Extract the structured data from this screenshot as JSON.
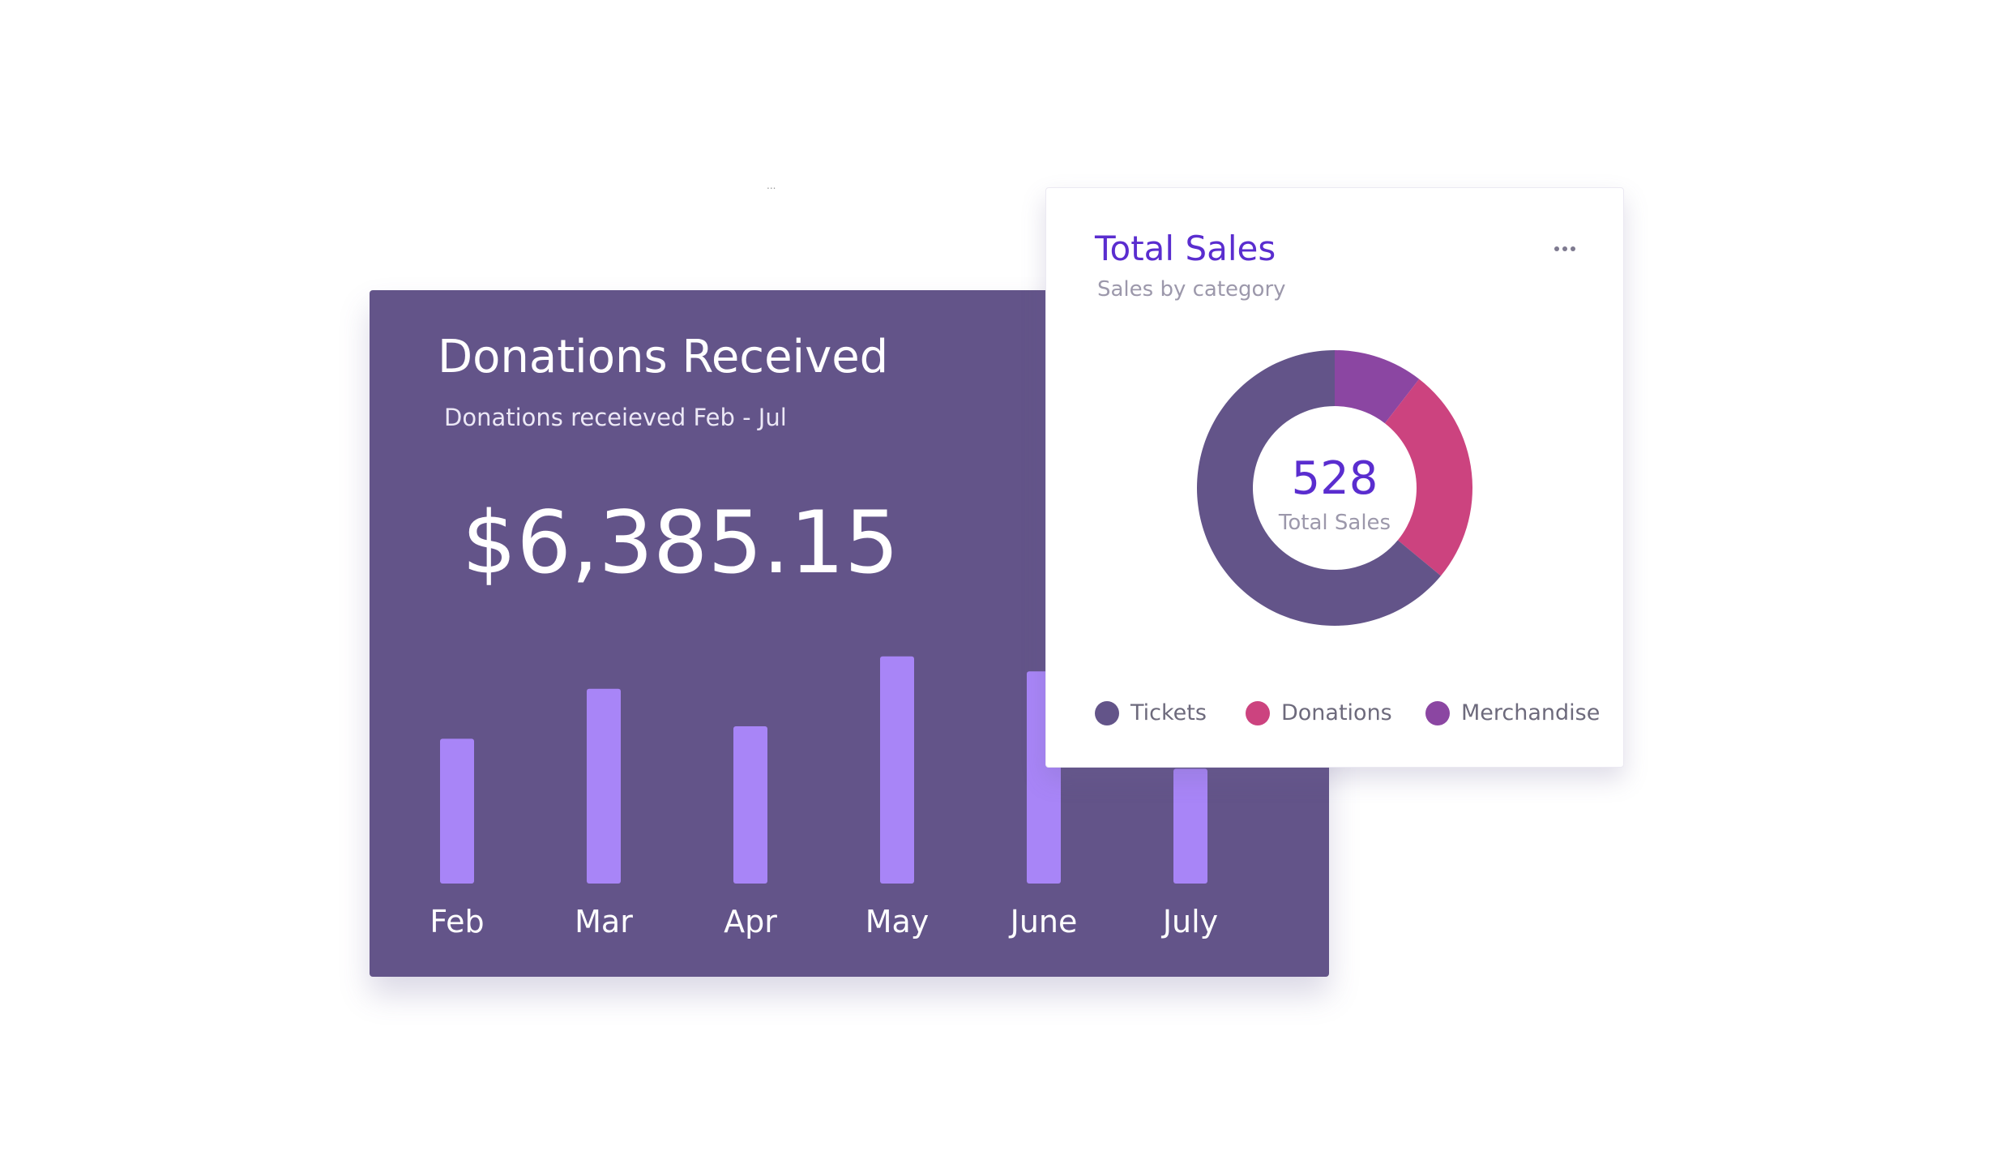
{
  "stray_mark": "...",
  "donations": {
    "title": "Donations Received",
    "subtitle": "Donations receieved Feb - Jul",
    "amount": "$6,385.15"
  },
  "total_sales": {
    "title": "Total Sales",
    "subtitle": "Sales by category",
    "center_value": "528",
    "center_label": "Total Sales",
    "legend": [
      {
        "label": "Tickets",
        "color": "#635489"
      },
      {
        "label": "Donations",
        "color": "#cc437f"
      },
      {
        "label": "Merchandise",
        "color": "#8b46a2"
      }
    ]
  },
  "chart_data": [
    {
      "type": "bar",
      "title": "Donations Received",
      "subtitle": "Donations receieved Feb - Jul",
      "categories": [
        "Feb",
        "Mar",
        "Apr",
        "May",
        "June",
        "July"
      ],
      "values": [
        58,
        78,
        63,
        91,
        85,
        46
      ],
      "ylim": [
        0,
        100
      ],
      "grid": false,
      "bar_color": "#a885f7",
      "label_color": "#ffffff"
    },
    {
      "type": "pie",
      "title": "Total Sales",
      "subtitle": "Sales by category",
      "donut": true,
      "total": 528,
      "slices": [
        {
          "name": "Merchandise",
          "value": 0.105,
          "color": "#8b46a2"
        },
        {
          "name": "Donations",
          "value": 0.255,
          "color": "#cc437f"
        },
        {
          "name": "Tickets",
          "value": 0.64,
          "color": "#635489"
        }
      ],
      "legend_position": "bottom"
    }
  ]
}
